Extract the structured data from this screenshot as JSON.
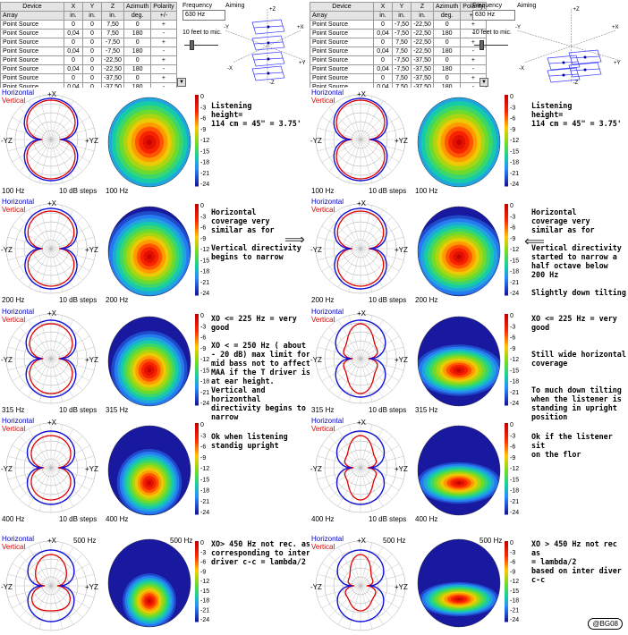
{
  "table_headers": [
    "Device",
    "X",
    "Y",
    "Z",
    "Azimuth",
    "Polarity"
  ],
  "table_units": [
    "Array",
    "in.",
    "in.",
    "in.",
    "deg.",
    "+/-"
  ],
  "left_array": [
    [
      "Point Source",
      "0",
      "0",
      "7,50",
      "0",
      "+"
    ],
    [
      "Point Source",
      "0,04",
      "0",
      "7,50",
      "180",
      "-"
    ],
    [
      "Point Source",
      "0",
      "0",
      "-7,50",
      "0",
      "+"
    ],
    [
      "Point Source",
      "0,04",
      "0",
      "-7,50",
      "180",
      "-"
    ],
    [
      "Point Source",
      "0",
      "0",
      "-22,50",
      "0",
      "+"
    ],
    [
      "Point Source",
      "0,04",
      "0",
      "-22,50",
      "180",
      "-"
    ],
    [
      "Point Source",
      "0",
      "0",
      "-37,50",
      "0",
      "+"
    ],
    [
      "Point Source",
      "0,04",
      "0",
      "-37,50",
      "180",
      "-"
    ]
  ],
  "right_array": [
    [
      "Point Source",
      "0",
      "-7,50",
      "-22,50",
      "0",
      "+"
    ],
    [
      "Point Source",
      "0,04",
      "-7,50",
      "-22,50",
      "180",
      "-"
    ],
    [
      "Point Source",
      "0",
      "7,50",
      "-22,50",
      "0",
      "+"
    ],
    [
      "Point Source",
      "0,04",
      "7,50",
      "-22,50",
      "180",
      "-"
    ],
    [
      "Point Source",
      "0",
      "-7,50",
      "-37,50",
      "0",
      "+"
    ],
    [
      "Point Source",
      "0,04",
      "-7,50",
      "-37,50",
      "180",
      "-"
    ],
    [
      "Point Source",
      "0",
      "7,50",
      "-37,50",
      "0",
      "+"
    ],
    [
      "Point Source",
      "0,04",
      "7,50",
      "-37,50",
      "180",
      "-"
    ]
  ],
  "frequency_label": "Frequency",
  "frequency_value": "630 Hz",
  "distance_label": "10 feet to mic.",
  "aiming_label": "Aiming",
  "axis_labels": {
    "plus_z": "+Z",
    "minus_z": "-Z",
    "plus_y": "+Y",
    "minus_y": "-Y",
    "plus_x": "+X",
    "minus_x": "-X"
  },
  "legend": {
    "horizontal": "Horizontal",
    "vertical": "Vertical"
  },
  "polar_labels": {
    "top": "+X",
    "left": "-YZ",
    "right": "+YZ",
    "steps": "10 dB steps"
  },
  "scale_ticks": [
    "0",
    "-3",
    "-6",
    "-9",
    "-12",
    "-15",
    "-18",
    "-21",
    "-24"
  ],
  "frequencies": [
    "100 Hz",
    "200 Hz",
    "315 Hz",
    "400 Hz",
    "500 Hz"
  ],
  "left_notes": [
    "Listening\nheight=\n114 cm = 45\" = 3.75'",
    "Horizontal\ncoverage very\nsimilar as for\n\nVertical directivity\nbegins to narrow",
    "XO <= 225 Hz = very\ngood\n\nXO < = 250 Hz ( about\n- 20 dB)  max limit for\nmid bass not to affect\nMAA if the T driver is\nat ear height.\nVertical and horizonthal\ndirectivity begins to\nnarrow",
    "Ok when listening\nstandig upright",
    "XO> 450 Hz not rec. as\ncorresponding to inter\ndriver c-c = lambda/2"
  ],
  "right_notes": [
    "Listening\nheight=\n114 cm = 45\" = 3.75'",
    "Horizontal\ncoverage very\nsimilar as for\n\nVertical directivity\nstarted to narrow a\nhalf octave below\n200 Hz\n\nSlightly down tilting",
    "XO <= 225 Hz = very\ngood\n\n\nStill wide horizontal\ncoverage\n\n\nTo much down tilting\nwhen the listener is\nstanding in upright\nposition",
    "Ok if  the listener sit\non the flor",
    "XO > 450 Hz not rec as\n= lambda/2\nbased on inter diver c-c"
  ],
  "credit": "@BG08"
}
